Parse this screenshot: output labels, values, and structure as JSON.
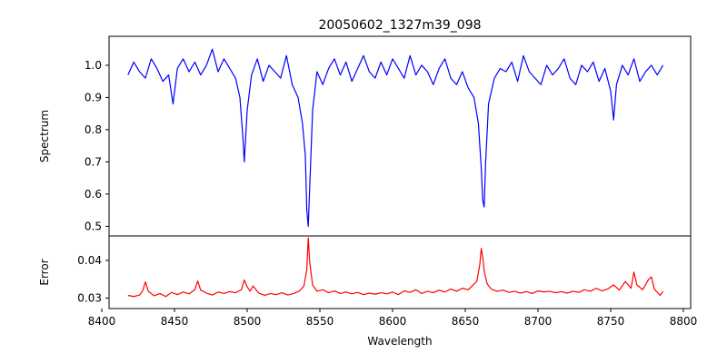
{
  "chart_data": [
    {
      "type": "line",
      "title": "20050602_1327m39_098",
      "xlabel": "",
      "ylabel": "Spectrum",
      "xlim": [
        8405,
        8805
      ],
      "ylim": [
        0.47,
        1.09
      ],
      "yticks": [
        0.5,
        0.6,
        0.7,
        0.8,
        0.9,
        1.0
      ],
      "ytick_labels": [
        "0.5",
        "0.6",
        "0.7",
        "0.8",
        "0.9",
        "1.0"
      ],
      "series": [
        {
          "color": "#0000ff",
          "x": [
            8418,
            8422,
            8426,
            8430,
            8434,
            8438,
            8442,
            8446,
            8449,
            8452,
            8456,
            8460,
            8464,
            8468,
            8472,
            8476,
            8480,
            8484,
            8488,
            8492,
            8495,
            8497,
            8498,
            8500,
            8503,
            8507,
            8511,
            8515,
            8519,
            8523,
            8527,
            8531,
            8535,
            8538,
            8540,
            8541,
            8542,
            8543,
            8545,
            8548,
            8552,
            8556,
            8560,
            8564,
            8568,
            8572,
            8576,
            8580,
            8584,
            8588,
            8592,
            8596,
            8600,
            8604,
            8608,
            8612,
            8616,
            8620,
            8624,
            8628,
            8632,
            8636,
            8640,
            8644,
            8648,
            8652,
            8656,
            8659,
            8661,
            8662,
            8663,
            8664,
            8666,
            8670,
            8674,
            8678,
            8682,
            8686,
            8690,
            8694,
            8698,
            8702,
            8706,
            8710,
            8714,
            8718,
            8722,
            8726,
            8730,
            8734,
            8738,
            8742,
            8746,
            8750,
            8752,
            8754,
            8758,
            8762,
            8766,
            8770,
            8774,
            8778,
            8782,
            8786
          ],
          "values": [
            0.97,
            1.01,
            0.98,
            0.96,
            1.02,
            0.99,
            0.95,
            0.97,
            0.88,
            0.99,
            1.02,
            0.98,
            1.01,
            0.97,
            1.0,
            1.05,
            0.98,
            1.02,
            0.99,
            0.96,
            0.9,
            0.78,
            0.7,
            0.86,
            0.97,
            1.02,
            0.95,
            1.0,
            0.98,
            0.96,
            1.03,
            0.94,
            0.9,
            0.82,
            0.72,
            0.55,
            0.5,
            0.62,
            0.86,
            0.98,
            0.94,
            0.99,
            1.02,
            0.97,
            1.01,
            0.95,
            0.99,
            1.03,
            0.98,
            0.96,
            1.01,
            0.97,
            1.02,
            0.99,
            0.96,
            1.03,
            0.97,
            1.0,
            0.98,
            0.94,
            0.99,
            1.02,
            0.96,
            0.94,
            0.98,
            0.93,
            0.9,
            0.82,
            0.68,
            0.58,
            0.56,
            0.7,
            0.88,
            0.96,
            0.99,
            0.98,
            1.01,
            0.95,
            1.03,
            0.98,
            0.96,
            0.94,
            1.0,
            0.97,
            0.99,
            1.02,
            0.96,
            0.94,
            1.0,
            0.98,
            1.01,
            0.95,
            0.99,
            0.92,
            0.83,
            0.94,
            1.0,
            0.97,
            1.02,
            0.95,
            0.98,
            1.0,
            0.97,
            1.0
          ]
        }
      ]
    },
    {
      "type": "line",
      "title": "",
      "xlabel": "Wavelength",
      "ylabel": "Error",
      "xlim": [
        8405,
        8805
      ],
      "ylim": [
        0.0272,
        0.0465
      ],
      "xticks": [
        8400,
        8450,
        8500,
        8550,
        8600,
        8650,
        8700,
        8750,
        8800
      ],
      "xtick_labels": [
        "8400",
        "8450",
        "8500",
        "8550",
        "8600",
        "8650",
        "8700",
        "8750",
        "8800"
      ],
      "yticks": [
        0.03,
        0.04
      ],
      "ytick_labels": [
        "0.03",
        "0.04"
      ],
      "series": [
        {
          "color": "#ff0000",
          "x": [
            8418,
            8422,
            8426,
            8428,
            8430,
            8432,
            8436,
            8440,
            8444,
            8448,
            8452,
            8456,
            8460,
            8464,
            8466,
            8468,
            8472,
            8476,
            8480,
            8484,
            8488,
            8492,
            8496,
            8498,
            8500,
            8502,
            8504,
            8508,
            8512,
            8516,
            8520,
            8524,
            8528,
            8532,
            8536,
            8539,
            8541,
            8542,
            8543,
            8545,
            8548,
            8552,
            8556,
            8560,
            8564,
            8568,
            8572,
            8576,
            8580,
            8584,
            8588,
            8592,
            8596,
            8600,
            8604,
            8608,
            8612,
            8616,
            8620,
            8624,
            8628,
            8632,
            8636,
            8640,
            8644,
            8648,
            8652,
            8655,
            8658,
            8660,
            8661,
            8662,
            8663,
            8665,
            8668,
            8672,
            8676,
            8680,
            8684,
            8688,
            8692,
            8696,
            8700,
            8704,
            8708,
            8712,
            8716,
            8720,
            8724,
            8728,
            8732,
            8736,
            8740,
            8744,
            8748,
            8752,
            8756,
            8760,
            8764,
            8766,
            8768,
            8772,
            8776,
            8778,
            8780,
            8784,
            8786
          ],
          "values": [
            0.0307,
            0.0304,
            0.0308,
            0.0318,
            0.0343,
            0.0318,
            0.0306,
            0.0312,
            0.0304,
            0.0315,
            0.0309,
            0.0316,
            0.0311,
            0.0322,
            0.0345,
            0.0321,
            0.0313,
            0.0308,
            0.0316,
            0.0312,
            0.0317,
            0.0314,
            0.0322,
            0.0348,
            0.033,
            0.0318,
            0.0332,
            0.0313,
            0.0307,
            0.0312,
            0.0309,
            0.0314,
            0.0308,
            0.0312,
            0.0319,
            0.0332,
            0.0375,
            0.046,
            0.0395,
            0.0335,
            0.0318,
            0.0322,
            0.0314,
            0.0319,
            0.0312,
            0.0316,
            0.0311,
            0.0315,
            0.0309,
            0.0313,
            0.031,
            0.0314,
            0.0311,
            0.0316,
            0.0309,
            0.0319,
            0.0315,
            0.0322,
            0.0312,
            0.0318,
            0.0314,
            0.0321,
            0.0316,
            0.0324,
            0.0318,
            0.0326,
            0.0322,
            0.0333,
            0.0345,
            0.039,
            0.0432,
            0.0408,
            0.0372,
            0.0338,
            0.0323,
            0.0318,
            0.0321,
            0.0315,
            0.0318,
            0.0313,
            0.0317,
            0.0312,
            0.0319,
            0.0316,
            0.0318,
            0.0314,
            0.0317,
            0.0313,
            0.0318,
            0.0315,
            0.0322,
            0.0318,
            0.0326,
            0.0319,
            0.0324,
            0.0335,
            0.0321,
            0.0344,
            0.0326,
            0.0369,
            0.0335,
            0.0322,
            0.0349,
            0.0356,
            0.0324,
            0.0307,
            0.0318
          ]
        }
      ]
    }
  ]
}
